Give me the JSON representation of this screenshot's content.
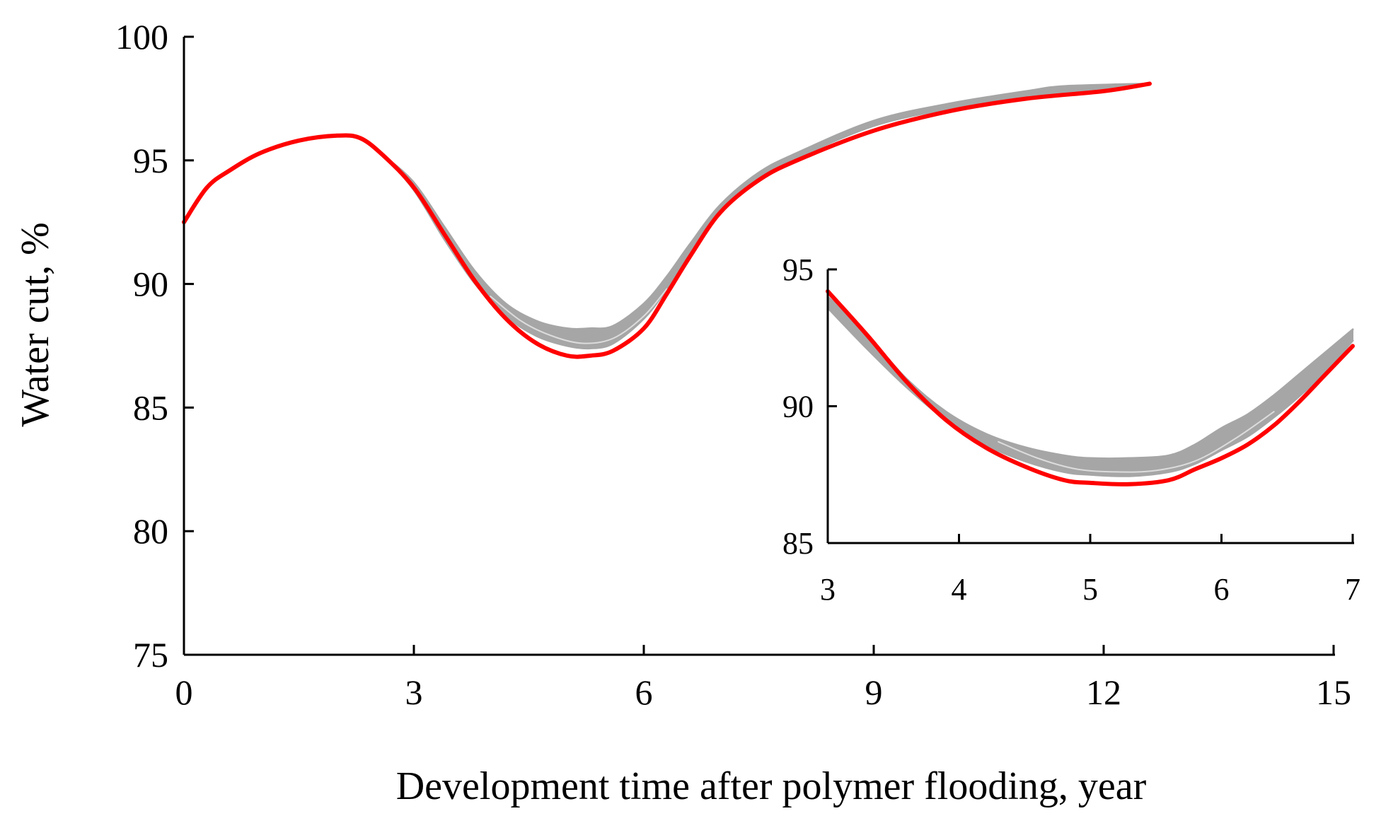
{
  "chart_data": [
    {
      "type": "line",
      "name": "main",
      "title": "",
      "xlabel": "Development time after polymer flooding, year",
      "ylabel": "Water cut, %",
      "xlim": [
        0,
        15
      ],
      "ylim": [
        75,
        100
      ],
      "xticks": [
        0,
        3,
        6,
        9,
        12,
        15
      ],
      "yticks": [
        75,
        80,
        85,
        90,
        95,
        100
      ],
      "grid": false,
      "legend": "none",
      "colors": {
        "realizations": "#a6a6a6",
        "realization_highlight": "#dcdcdc",
        "reference": "#ff0000",
        "axis": "#000000"
      },
      "series": [
        {
          "name": "reference",
          "color": "#ff0000",
          "x": [
            0,
            0.3,
            0.6,
            1.0,
            1.5,
            2.0,
            2.3,
            2.6,
            3.0,
            3.4,
            3.8,
            4.2,
            4.6,
            5.0,
            5.3,
            5.6,
            6.0,
            6.3,
            6.6,
            7.0,
            7.5,
            8.0,
            9.0,
            10.0,
            11.0,
            12.0,
            12.6
          ],
          "y": [
            92.5,
            93.9,
            94.6,
            95.3,
            95.8,
            96.0,
            95.9,
            95.2,
            93.9,
            92.0,
            90.1,
            88.6,
            87.6,
            87.1,
            87.1,
            87.3,
            88.2,
            89.6,
            91.1,
            92.9,
            94.2,
            95.0,
            96.2,
            97.0,
            97.5,
            97.8,
            98.1
          ]
        },
        {
          "name": "realizations-upper",
          "color": "#a6a6a6",
          "x": [
            0,
            0.3,
            0.6,
            1.0,
            1.5,
            2.0,
            2.3,
            2.6,
            3.0,
            3.4,
            3.8,
            4.2,
            4.6,
            5.0,
            5.3,
            5.6,
            6.0,
            6.3,
            6.6,
            7.0,
            7.5,
            8.0,
            9.0,
            10.0,
            11.0,
            11.5,
            12.6
          ],
          "y": [
            92.5,
            93.9,
            94.6,
            95.3,
            95.8,
            96.0,
            95.9,
            95.2,
            94.1,
            92.3,
            90.5,
            89.2,
            88.5,
            88.2,
            88.2,
            88.3,
            89.2,
            90.3,
            91.6,
            93.2,
            94.5,
            95.3,
            96.6,
            97.3,
            97.8,
            98.0,
            98.1
          ]
        },
        {
          "name": "realizations-lower",
          "color": "#a6a6a6",
          "x": [
            0,
            0.3,
            0.6,
            1.0,
            1.5,
            2.0,
            2.3,
            2.6,
            3.0,
            3.4,
            3.8,
            4.2,
            4.6,
            5.0,
            5.3,
            5.6,
            6.0,
            6.3,
            6.6,
            7.0,
            7.5,
            8.0,
            9.0,
            10.0,
            11.0,
            12.0,
            12.6
          ],
          "y": [
            92.5,
            93.9,
            94.6,
            95.3,
            95.8,
            96.0,
            95.9,
            95.2,
            93.8,
            91.8,
            90.0,
            88.7,
            87.9,
            87.5,
            87.4,
            87.6,
            88.6,
            89.8,
            91.2,
            93.0,
            94.3,
            95.1,
            96.4,
            97.1,
            97.6,
            97.9,
            98.1
          ]
        },
        {
          "name": "realization-highlight",
          "color": "#dcdcdc",
          "x": [
            4.0,
            4.4,
            4.8,
            5.2,
            5.6,
            6.0,
            6.3
          ],
          "y": [
            89.5,
            88.5,
            87.9,
            87.6,
            87.8,
            88.7,
            89.8
          ]
        }
      ]
    },
    {
      "type": "line",
      "name": "inset",
      "title": "",
      "xlabel": "",
      "ylabel": "",
      "xlim": [
        3,
        7
      ],
      "ylim": [
        85,
        95
      ],
      "xticks": [
        3,
        4,
        5,
        6,
        7
      ],
      "yticks": [
        85,
        90,
        95
      ],
      "grid": false,
      "legend": "none",
      "series": [
        {
          "name": "reference",
          "color": "#ff0000",
          "x": [
            3.0,
            3.3,
            3.6,
            3.9,
            4.2,
            4.5,
            4.8,
            5.0,
            5.3,
            5.6,
            5.8,
            6.0,
            6.2,
            6.4,
            6.6,
            6.8,
            7.0
          ],
          "y": [
            94.2,
            92.6,
            90.9,
            89.5,
            88.5,
            87.8,
            87.3,
            87.2,
            87.15,
            87.3,
            87.7,
            88.1,
            88.6,
            89.3,
            90.2,
            91.2,
            92.2
          ]
        },
        {
          "name": "realizations-upper",
          "color": "#a6a6a6",
          "x": [
            3.0,
            3.3,
            3.6,
            3.9,
            4.2,
            4.5,
            4.8,
            5.0,
            5.3,
            5.6,
            5.8,
            6.0,
            6.2,
            6.4,
            6.6,
            6.8,
            7.0
          ],
          "y": [
            94.0,
            92.6,
            91.0,
            89.8,
            89.0,
            88.5,
            88.2,
            88.1,
            88.1,
            88.2,
            88.6,
            89.2,
            89.7,
            90.4,
            91.2,
            92.0,
            92.8
          ]
        },
        {
          "name": "realizations-lower",
          "color": "#a6a6a6",
          "x": [
            3.0,
            3.3,
            3.6,
            3.9,
            4.2,
            4.5,
            4.8,
            5.0,
            5.3,
            5.6,
            5.8,
            6.0,
            6.2,
            6.4,
            6.6,
            6.8,
            7.0
          ],
          "y": [
            93.6,
            92.1,
            90.7,
            89.5,
            88.6,
            88.0,
            87.6,
            87.5,
            87.45,
            87.6,
            87.9,
            88.4,
            88.9,
            89.6,
            90.4,
            91.3,
            92.4
          ]
        },
        {
          "name": "realization-highlight",
          "color": "#dcdcdc",
          "x": [
            4.3,
            4.6,
            4.9,
            5.2,
            5.5,
            5.8,
            6.1,
            6.4
          ],
          "y": [
            88.7,
            88.1,
            87.7,
            87.6,
            87.65,
            88.0,
            88.8,
            89.8
          ]
        }
      ]
    }
  ]
}
